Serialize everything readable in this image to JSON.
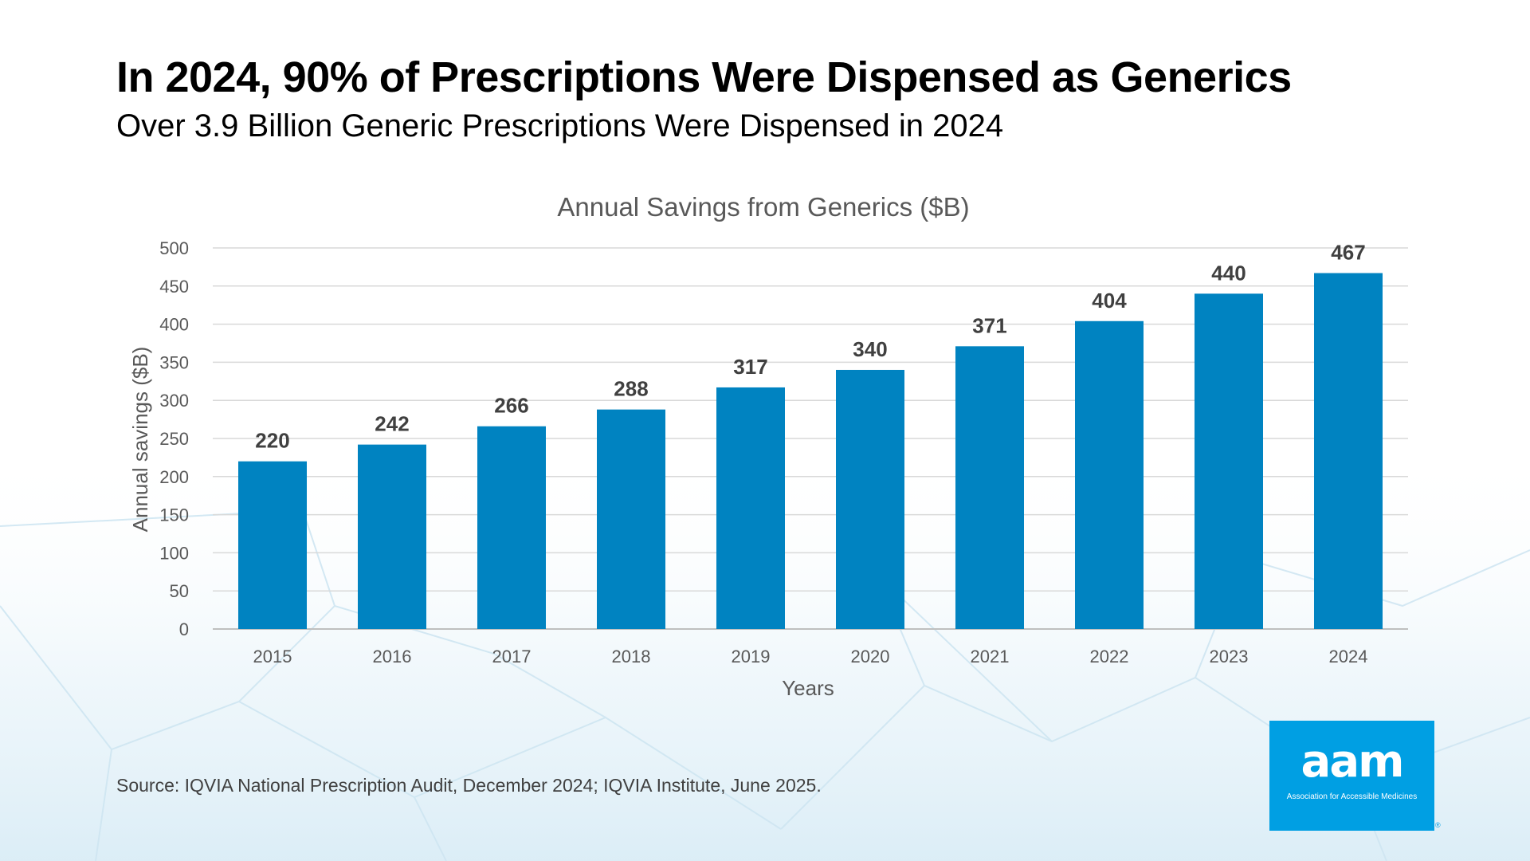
{
  "header": {
    "title": "In 2024, 90% of Prescriptions Were Dispensed as Generics",
    "subtitle": "Over 3.9 Billion Generic Prescriptions Were Dispensed in 2024"
  },
  "chart_data": {
    "type": "bar",
    "title": "Annual Savings from Generics ($B)",
    "xlabel": "Years",
    "ylabel": "Annual savings ($B)",
    "categories": [
      "2015",
      "2016",
      "2017",
      "2018",
      "2019",
      "2020",
      "2021",
      "2022",
      "2023",
      "2024"
    ],
    "values": [
      220,
      242,
      266,
      288,
      317,
      340,
      371,
      404,
      440,
      467
    ],
    "ylim": [
      0,
      500
    ],
    "yticks": [
      0,
      50,
      100,
      150,
      200,
      250,
      300,
      350,
      400,
      450,
      500
    ],
    "grid": true,
    "data_labels": true,
    "bar_color": "#0083c1"
  },
  "footer": {
    "source": "Source: IQVIA National Prescription Audit, December 2024; IQVIA Institute, June 2025."
  },
  "logo": {
    "mark": "aam",
    "tagline": "Association for Accessible Medicines",
    "registered": "®",
    "color": "#009fe3"
  }
}
